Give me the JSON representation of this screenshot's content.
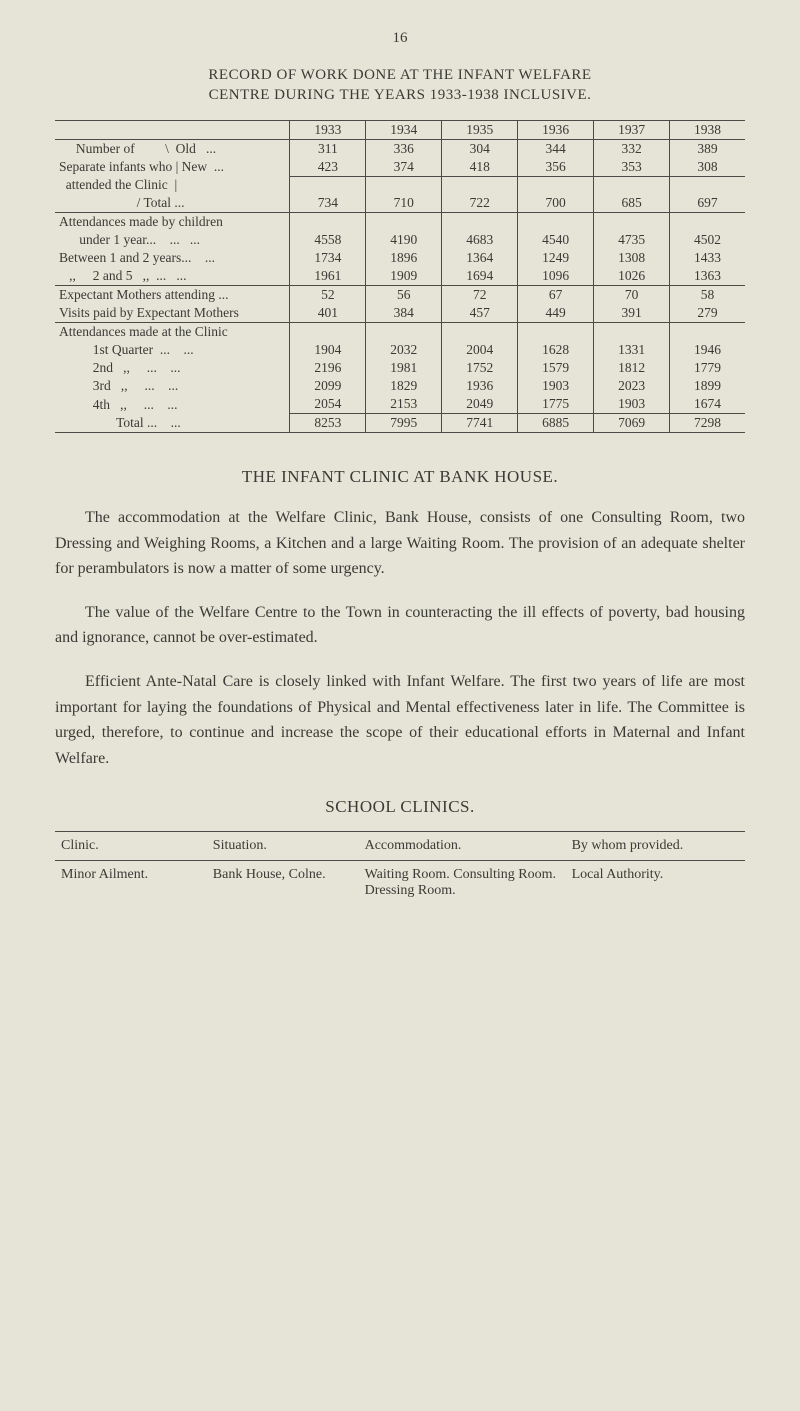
{
  "page_number": "16",
  "title": {
    "line1": "RECORD OF WORK DONE AT THE INFANT WELFARE",
    "line2": "CENTRE DURING THE YEARS 1933-1938 INCLUSIVE."
  },
  "work_table": {
    "years": [
      "1933",
      "1934",
      "1935",
      "1936",
      "1937",
      "1938"
    ],
    "rows": [
      {
        "label": "     Number of         \\  Old   ...",
        "vals": [
          "311",
          "336",
          "304",
          "344",
          "332",
          "389"
        ]
      },
      {
        "label": "Separate infants who | New  ...",
        "vals": [
          "423",
          "374",
          "418",
          "356",
          "353",
          "308"
        ]
      },
      {
        "label": "  attended the Clinic  |",
        "vals": [
          "",
          "",
          "",
          "",
          "",
          ""
        ]
      },
      {
        "label": "                       / Total ...",
        "vals": [
          "734",
          "710",
          "722",
          "700",
          "685",
          "697"
        ]
      }
    ],
    "attend_hdr": "Attendances made by children",
    "attend_rows": [
      {
        "label": "      under 1 year...    ...   ...",
        "vals": [
          "4558",
          "4190",
          "4683",
          "4540",
          "4735",
          "4502"
        ]
      },
      {
        "label": "Between 1 and 2 years...    ...",
        "vals": [
          "1734",
          "1896",
          "1364",
          "1249",
          "1308",
          "1433"
        ]
      },
      {
        "label": "   ,,     2 and 5   ,,  ...   ...",
        "vals": [
          "1961",
          "1909",
          "1694",
          "1096",
          "1026",
          "1363"
        ]
      }
    ],
    "exp_rows": [
      {
        "label": "Expectant Mothers attending ...",
        "vals": [
          "52",
          "56",
          "72",
          "67",
          "70",
          "58"
        ]
      },
      {
        "label": "Visits paid by Expectant Mothers",
        "vals": [
          "401",
          "384",
          "457",
          "449",
          "391",
          "279"
        ]
      }
    ],
    "clinic_hdr": "Attendances made at the Clinic",
    "clinic_rows": [
      {
        "label": "          1st Quarter  ...    ...",
        "vals": [
          "1904",
          "2032",
          "2004",
          "1628",
          "1331",
          "1946"
        ]
      },
      {
        "label": "          2nd   ,,     ...    ...",
        "vals": [
          "2196",
          "1981",
          "1752",
          "1579",
          "1812",
          "1779"
        ]
      },
      {
        "label": "          3rd   ,,     ...    ...",
        "vals": [
          "2099",
          "1829",
          "1936",
          "1903",
          "2023",
          "1899"
        ]
      },
      {
        "label": "          4th   ,,     ...    ...",
        "vals": [
          "2054",
          "2153",
          "2049",
          "1775",
          "1903",
          "1674"
        ]
      }
    ],
    "total_row": {
      "label": "                 Total ...    ...",
      "vals": [
        "8253",
        "7995",
        "7741",
        "6885",
        "7069",
        "7298"
      ]
    }
  },
  "section1_heading": "THE  INFANT  CLINIC  AT  BANK  HOUSE.",
  "para1": "The accommodation at the Welfare Clinic, Bank House, consists of one Consulting Room, two Dressing and Weighing Rooms, a Kitchen and a large Waiting Room.  The provision of an adequate shelter for perambulators is now a matter of some urgency.",
  "para2": "The value of the Welfare Centre to the Town in counteracting the ill effects of poverty, bad housing and ignorance, cannot be over-estimated.",
  "para3": "Efficient Ante-Natal Care is closely linked with Infant Welfare. The first two years of life are most important for laying the foundations of Physical and Mental effectiveness later in life.  The Committee is urged, therefore, to continue and increase the scope of their educational efforts in Maternal and Infant Welfare.",
  "section2_heading": "SCHOOL  CLINICS.",
  "clinics_table": {
    "headers": [
      "Clinic.",
      "Situation.",
      "Accommodation.",
      "By whom provided."
    ],
    "row": {
      "clinic": "Minor Ailment.",
      "situation": "Bank House, Colne.",
      "accommodation": "Waiting Room. Consulting Room. Dressing Room.",
      "provider": "Local Authority."
    }
  }
}
